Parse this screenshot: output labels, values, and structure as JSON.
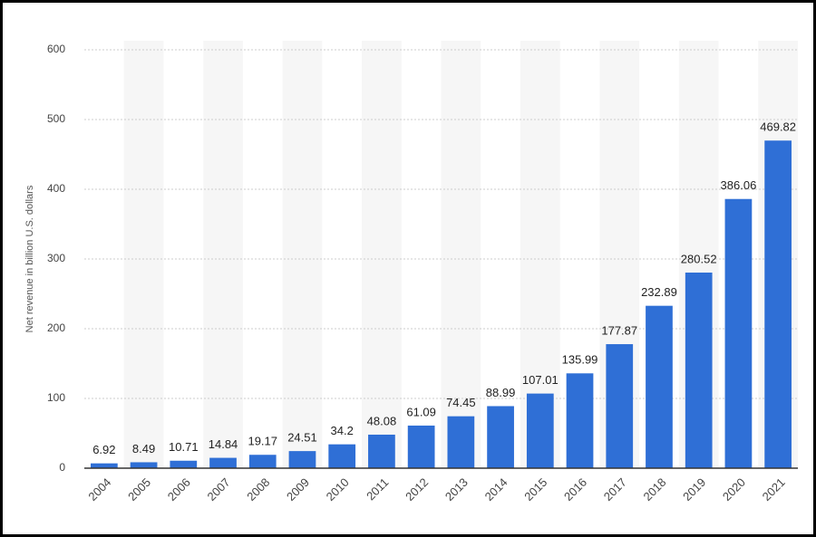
{
  "chart_data": {
    "type": "bar",
    "y_label": "Net revenue in billion U.S. dollars",
    "categories": [
      "2004",
      "2005",
      "2006",
      "2007",
      "2008",
      "2009",
      "2010",
      "2011",
      "2012",
      "2013",
      "2014",
      "2015",
      "2016",
      "2017",
      "2018",
      "2019",
      "2020",
      "2021"
    ],
    "values": [
      6.92,
      8.49,
      10.71,
      14.84,
      19.17,
      24.51,
      34.2,
      48.08,
      61.09,
      74.45,
      88.99,
      107.01,
      135.99,
      177.87,
      232.89,
      280.52,
      386.06,
      469.82
    ],
    "color": "#2f6fd6",
    "ylim": [
      0,
      600
    ],
    "yticks": [
      0,
      100,
      200,
      300,
      400,
      500,
      600
    ],
    "grid": true
  }
}
